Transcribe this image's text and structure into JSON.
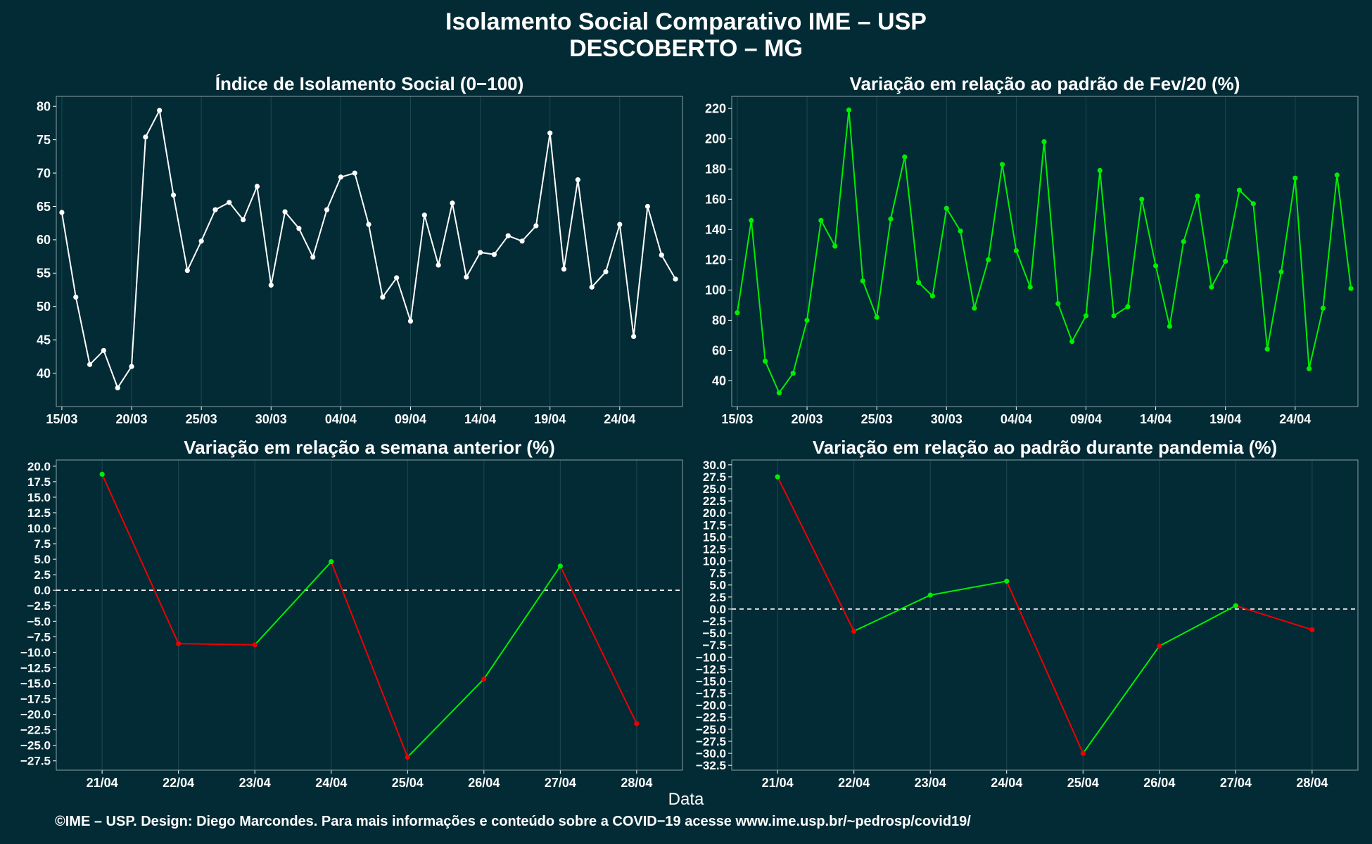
{
  "title": "Isolamento Social Comparativo IME – USP",
  "subtitle": "DESCOBERTO – MG",
  "xlabel": "Data",
  "footer": "©IME – USP. Design: Diego Marcondes. Para mais informações e conteúdo sobre a COVID−19 acesse www.ime.usp.br/~pedrosp/covid19/",
  "colors": {
    "background": "#022b35",
    "white": "#ffffff",
    "green": "#00ee00",
    "red": "#ee0000",
    "grid": "#1d4a52"
  },
  "chart_data": [
    {
      "type": "line",
      "title": "Índice de Isolamento Social (0−100)",
      "color": "white",
      "xlim": [
        14.6,
        59.5
      ],
      "ylim": [
        35,
        81.5
      ],
      "yticks": [
        40,
        45,
        50,
        55,
        60,
        65,
        70,
        75,
        80
      ],
      "ytick_labels": [
        "40",
        "45",
        "50",
        "55",
        "60",
        "65",
        "70",
        "75",
        "80"
      ],
      "xticks": [
        15,
        20,
        25,
        30,
        35,
        40,
        45,
        50,
        55
      ],
      "xtick_labels": [
        "15/03",
        "20/03",
        "25/03",
        "30/03",
        "04/04",
        "09/04",
        "14/04",
        "19/04",
        "24/04"
      ],
      "x": [
        15,
        16,
        17,
        18,
        19,
        20,
        21,
        22,
        23,
        24,
        25,
        26,
        27,
        28,
        29,
        30,
        31,
        32,
        33,
        34,
        35,
        36,
        37,
        38,
        39,
        40,
        41,
        42,
        43,
        44,
        45,
        46,
        47,
        48,
        49,
        50,
        51,
        52,
        53,
        54,
        55,
        56,
        57,
        58,
        59
      ],
      "values": [
        64.1,
        51.4,
        41.3,
        43.4,
        37.8,
        41.0,
        75.4,
        79.4,
        66.7,
        55.4,
        59.8,
        64.5,
        65.6,
        63.0,
        68.0,
        53.2,
        64.2,
        61.7,
        57.4,
        64.5,
        69.4,
        70.0,
        62.3,
        51.4,
        54.3,
        47.8,
        63.7,
        56.2,
        65.5,
        54.4,
        58.1,
        57.8,
        60.6,
        59.8,
        62.1,
        76.0,
        55.6,
        69.0,
        52.9,
        55.2,
        62.3,
        45.5,
        65.0,
        57.7,
        54.1
      ]
    },
    {
      "type": "line",
      "title": "Variação em relação ao padrão de Fev/20 (%)",
      "color": "green",
      "xlim": [
        14.6,
        59.5
      ],
      "ylim": [
        23,
        228
      ],
      "yticks": [
        40,
        60,
        80,
        100,
        120,
        140,
        160,
        180,
        200,
        220
      ],
      "ytick_labels": [
        "40",
        "60",
        "80",
        "100",
        "120",
        "140",
        "160",
        "180",
        "200",
        "220"
      ],
      "xticks": [
        15,
        20,
        25,
        30,
        35,
        40,
        45,
        50,
        55
      ],
      "xtick_labels": [
        "15/03",
        "20/03",
        "25/03",
        "30/03",
        "04/04",
        "09/04",
        "14/04",
        "19/04",
        "24/04"
      ],
      "x": [
        15,
        16,
        17,
        18,
        19,
        20,
        21,
        22,
        23,
        24,
        25,
        26,
        27,
        28,
        29,
        30,
        31,
        32,
        33,
        34,
        35,
        36,
        37,
        38,
        39,
        40,
        41,
        42,
        43,
        44,
        45,
        46,
        47,
        48,
        49,
        50,
        51,
        52,
        53,
        54,
        55,
        56,
        57,
        58,
        59
      ],
      "values": [
        85,
        146,
        53,
        32,
        45,
        80,
        146,
        129,
        219,
        106,
        82,
        147,
        188,
        105,
        96,
        154,
        139,
        88,
        120,
        183,
        126,
        102,
        198,
        91,
        66,
        83,
        179,
        83,
        89,
        160,
        116,
        76,
        132,
        162,
        102,
        119,
        166,
        157,
        61,
        112,
        174,
        48,
        88,
        176,
        101
      ]
    },
    {
      "type": "line",
      "title": "Variação em relação a semana anterior (%)",
      "color": "segment-colored",
      "xlim": [
        20.4,
        28.6
      ],
      "ylim": [
        -29,
        21
      ],
      "yticks": [
        -27.5,
        -25,
        -22.5,
        -20,
        -17.5,
        -15,
        -12.5,
        -10,
        -7.5,
        -5,
        -2.5,
        0,
        2.5,
        5,
        7.5,
        10,
        12.5,
        15,
        17.5,
        20
      ],
      "ytick_labels": [
        "−27.5",
        "−25.0",
        "−22.5",
        "−20.0",
        "−17.5",
        "−15.0",
        "−12.5",
        "−10.0",
        "−7.5",
        "−5.0",
        "−2.5",
        "0.0",
        "2.5",
        "5.0",
        "7.5",
        "10.0",
        "12.5",
        "15.0",
        "17.5",
        "20.0"
      ],
      "categories": [
        "21/04",
        "22/04",
        "23/04",
        "24/04",
        "25/04",
        "26/04",
        "27/04",
        "28/04"
      ],
      "x": [
        21,
        22,
        23,
        24,
        25,
        26,
        27,
        28
      ],
      "values": [
        18.7,
        -8.6,
        -8.8,
        4.6,
        -26.9,
        -14.3,
        3.9,
        -21.5
      ],
      "point_colors": [
        "green",
        "red",
        "red",
        "green",
        "red",
        "red",
        "green",
        "red"
      ],
      "reference_line": 0
    },
    {
      "type": "line",
      "title": "Variação em relação ao padrão durante pandemia (%)",
      "color": "segment-colored",
      "xlim": [
        20.4,
        28.6
      ],
      "ylim": [
        -33.5,
        31
      ],
      "yticks": [
        -32.5,
        -30,
        -27.5,
        -25,
        -22.5,
        -20,
        -17.5,
        -15,
        -12.5,
        -10,
        -7.5,
        -5,
        -2.5,
        0,
        2.5,
        5,
        7.5,
        10,
        12.5,
        15,
        17.5,
        20,
        22.5,
        25,
        27.5,
        30
      ],
      "ytick_labels": [
        "−32.5",
        "−30.0",
        "−27.5",
        "−25.0",
        "−22.5",
        "−20.0",
        "−17.5",
        "−15.0",
        "−12.5",
        "−10.0",
        "−7.5",
        "−5.0",
        "−2.5",
        "0.0",
        "2.5",
        "5.0",
        "7.5",
        "10.0",
        "12.5",
        "15.0",
        "17.5",
        "20.0",
        "22.5",
        "25.0",
        "27.5",
        "30.0"
      ],
      "categories": [
        "21/04",
        "22/04",
        "23/04",
        "24/04",
        "25/04",
        "26/04",
        "27/04",
        "28/04"
      ],
      "x": [
        21,
        22,
        23,
        24,
        25,
        26,
        27,
        28
      ],
      "values": [
        27.5,
        -4.6,
        2.9,
        5.8,
        -30.0,
        -7.7,
        0.7,
        -4.3
      ],
      "point_colors": [
        "green",
        "red",
        "green",
        "green",
        "red",
        "red",
        "green",
        "red"
      ],
      "reference_line": 0
    }
  ]
}
